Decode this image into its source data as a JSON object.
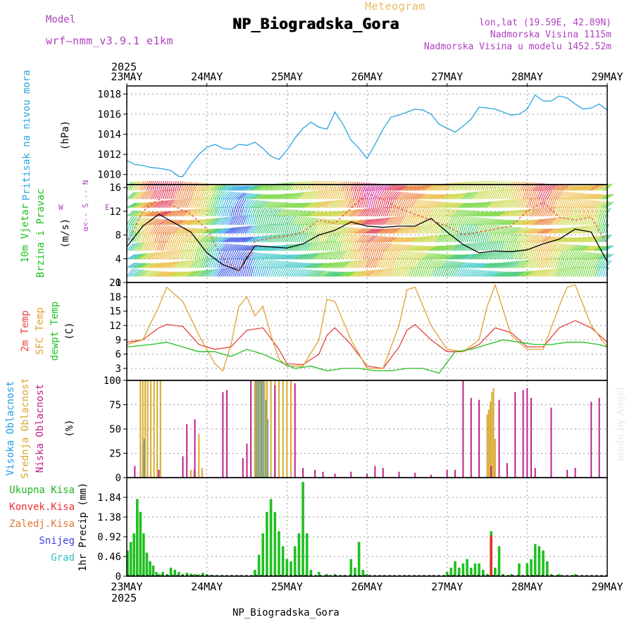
{
  "header": {
    "model_label": "Model",
    "model_version": "wrf–nmm_v3.9.1 e1km",
    "meteogram_label": "Meteogram",
    "station": "NP_Biogradska_Gora",
    "lonlat": "lon,lat (19.59E, 42.89N)",
    "altitude": "Nadmorska Visina 1115m",
    "model_altitude": "Nadmorska Visina u modelu 1452.52m",
    "footer_station": "NP_Biogradska_Gora",
    "made_by": "made by Angel"
  },
  "time_axis": {
    "year": "2025",
    "labels": [
      "23MAY",
      "24MAY",
      "25MAY",
      "26MAY",
      "27MAY",
      "28MAY",
      "29MAY"
    ]
  },
  "chart_data": [
    {
      "type": "line",
      "panel": "pressure",
      "ylabel_1": "Pritisak na nivou mora",
      "ylabel_2": "(hPa)",
      "ylim": [
        1009,
        1018.8
      ],
      "yticks": [
        1010,
        1012,
        1014,
        1016,
        1018
      ],
      "xlim_days": [
        0,
        6
      ],
      "series": [
        {
          "color": "#29a6e0",
          "x": [
            0,
            0.1,
            0.2,
            0.3,
            0.42,
            0.55,
            0.65,
            0.7,
            0.8,
            0.9,
            1.0,
            1.1,
            1.2,
            1.3,
            1.4,
            1.5,
            1.6,
            1.7,
            1.8,
            1.9,
            2.0,
            2.1,
            2.2,
            2.3,
            2.4,
            2.5,
            2.6,
            2.7,
            2.8,
            2.9,
            3.0,
            3.1,
            3.2,
            3.3,
            3.4,
            3.5,
            3.6,
            3.7,
            3.8,
            3.9,
            4.0,
            4.1,
            4.2,
            4.3,
            4.4,
            4.5,
            4.6,
            4.7,
            4.8,
            4.9,
            5.0,
            5.1,
            5.2,
            5.3,
            5.4,
            5.5,
            5.6,
            5.7,
            5.8,
            5.9,
            6.0
          ],
          "y": [
            1011.4,
            1011.0,
            1010.9,
            1010.7,
            1010.6,
            1010.4,
            1009.8,
            1009.8,
            1011.0,
            1012.0,
            1012.7,
            1013.0,
            1012.6,
            1012.5,
            1013.0,
            1012.9,
            1013.2,
            1012.6,
            1011.8,
            1011.5,
            1012.4,
            1013.6,
            1014.6,
            1015.2,
            1014.7,
            1014.5,
            1016.2,
            1015.0,
            1013.4,
            1012.6,
            1011.6,
            1013.0,
            1014.5,
            1015.7,
            1015.9,
            1016.2,
            1016.5,
            1016.4,
            1016.0,
            1015.0,
            1014.6,
            1014.2,
            1014.8,
            1015.5,
            1016.7,
            1016.6,
            1016.5,
            1016.2,
            1015.9,
            1016.0,
            1016.5,
            1017.9,
            1017.3,
            1017.3,
            1017.8,
            1017.6,
            1017.0,
            1016.5,
            1016.6,
            1017.0,
            1016.4
          ]
        }
      ]
    },
    {
      "type": "line",
      "panel": "wind",
      "ylabel_1": "10m Vjetar",
      "ylabel_2": "Brzina i Pravac",
      "ylabel_3": "(m/s)",
      "compass": {
        "n": "N",
        "s": "S",
        "w": "W",
        "e": "E",
        "angle": "α<"
      },
      "ylim": [
        0,
        16.5
      ],
      "yticks": [
        0,
        4,
        8,
        12,
        16
      ],
      "xlim_days": [
        0,
        6
      ],
      "series": [
        {
          "name": "wind speed",
          "color": "#000000",
          "x": [
            0,
            0.2,
            0.4,
            0.6,
            0.8,
            1.0,
            1.2,
            1.4,
            1.6,
            1.8,
            2.0,
            2.2,
            2.4,
            2.6,
            2.8,
            3.0,
            3.2,
            3.4,
            3.6,
            3.8,
            4.0,
            4.2,
            4.4,
            4.6,
            4.8,
            5.0,
            5.2,
            5.4,
            5.6,
            5.8,
            6.0
          ],
          "y": [
            6.0,
            9.5,
            11.5,
            10.0,
            8.5,
            5.0,
            3.0,
            2.0,
            6.2,
            6.0,
            5.8,
            6.5,
            8.0,
            8.8,
            10.2,
            9.5,
            9.3,
            9.5,
            9.5,
            10.8,
            8.5,
            6.4,
            5.0,
            5.3,
            5.2,
            5.5,
            6.5,
            7.3,
            9.0,
            8.5,
            3.5
          ]
        },
        {
          "name": "gust",
          "color": "#e84848",
          "x": [
            0,
            0.2,
            0.4,
            0.6,
            0.8,
            1.0,
            1.2,
            1.4,
            1.6,
            1.8,
            2.0,
            2.2,
            2.4,
            2.6,
            2.8,
            3.0,
            3.2,
            3.4,
            3.6,
            3.8,
            4.0,
            4.2,
            4.4,
            4.6,
            4.8,
            5.0,
            5.2,
            5.4,
            5.6,
            5.8,
            6.0
          ],
          "y": [
            6.5,
            12.0,
            14.0,
            12.8,
            11.5,
            9.0,
            4.0,
            2.0,
            7.0,
            7.5,
            7.8,
            8.5,
            10.5,
            10.0,
            12.5,
            15.0,
            14.0,
            12.5,
            11.5,
            10.5,
            9.5,
            8.0,
            8.5,
            9.0,
            9.5,
            12.0,
            13.5,
            11.0,
            10.5,
            11.0,
            6.5
          ]
        }
      ]
    },
    {
      "type": "line",
      "panel": "temperature",
      "ylabel_1": "2m Temp",
      "ylabel_2": "SFC Temp",
      "ylabel_3": "dewpt Temp",
      "ylabel_4": "(C)",
      "ylim": [
        0.5,
        21
      ],
      "yticks": [
        3,
        6,
        9,
        12,
        15,
        18,
        21
      ],
      "xlim_days": [
        0,
        6
      ],
      "series": [
        {
          "name": "2m Temp",
          "color": "#e84040",
          "x": [
            0,
            0.2,
            0.4,
            0.5,
            0.7,
            0.9,
            1.1,
            1.3,
            1.5,
            1.7,
            1.9,
            2.0,
            2.2,
            2.4,
            2.5,
            2.6,
            2.8,
            3.0,
            3.2,
            3.4,
            3.5,
            3.6,
            3.8,
            4.0,
            4.2,
            4.4,
            4.6,
            4.8,
            5.0,
            5.2,
            5.4,
            5.6,
            5.8,
            6.0
          ],
          "y": [
            8.5,
            9.0,
            11.5,
            12.2,
            11.8,
            8.0,
            7.0,
            7.5,
            11.0,
            11.5,
            7.0,
            4.0,
            3.8,
            6.0,
            10.0,
            11.5,
            8.0,
            3.5,
            3.0,
            7.5,
            11.0,
            12.2,
            9.0,
            6.5,
            6.5,
            8.0,
            11.5,
            10.5,
            7.5,
            7.5,
            11.5,
            13.0,
            11.5,
            8.5
          ]
        },
        {
          "name": "SFC Temp",
          "color": "#e0a030",
          "x": [
            0,
            0.2,
            0.4,
            0.5,
            0.7,
            0.9,
            1.1,
            1.2,
            1.3,
            1.4,
            1.5,
            1.6,
            1.7,
            1.8,
            1.9,
            2.0,
            2.2,
            2.4,
            2.5,
            2.6,
            2.8,
            3.0,
            3.2,
            3.4,
            3.5,
            3.6,
            3.8,
            4.0,
            4.2,
            4.4,
            4.5,
            4.6,
            4.8,
            5.0,
            5.2,
            5.4,
            5.5,
            5.6,
            5.8,
            6.0
          ],
          "y": [
            8.0,
            9.0,
            16.0,
            20.0,
            17.0,
            10.0,
            4.0,
            2.5,
            8.0,
            16.0,
            18.0,
            14.0,
            16.0,
            10.0,
            5.0,
            3.5,
            3.5,
            9.0,
            17.5,
            17.0,
            9.0,
            3.0,
            3.0,
            12.0,
            19.5,
            20.0,
            12.0,
            7.0,
            6.5,
            9.0,
            16.0,
            20.5,
            10.0,
            7.0,
            7.0,
            16.0,
            20.0,
            20.5,
            12.0,
            7.5
          ]
        },
        {
          "name": "dewpt Temp",
          "color": "#20c020",
          "x": [
            0,
            0.3,
            0.5,
            0.7,
            0.9,
            1.1,
            1.3,
            1.5,
            1.7,
            1.9,
            2.1,
            2.3,
            2.5,
            2.7,
            2.9,
            3.1,
            3.3,
            3.5,
            3.7,
            3.9,
            4.1,
            4.3,
            4.5,
            4.7,
            4.9,
            5.1,
            5.3,
            5.5,
            5.7,
            5.9,
            6.0
          ],
          "y": [
            7.5,
            8.0,
            8.5,
            7.5,
            6.5,
            6.5,
            5.5,
            7.0,
            6.0,
            4.5,
            3.0,
            3.5,
            2.5,
            3.0,
            3.0,
            2.5,
            2.5,
            3.0,
            3.0,
            2.0,
            6.5,
            7.0,
            8.0,
            9.0,
            8.5,
            8.0,
            8.0,
            8.5,
            8.5,
            8.0,
            7.5
          ]
        }
      ]
    },
    {
      "type": "bar",
      "panel": "cloud",
      "ylabel_1": "Visoka Oblacnost",
      "ylabel_2": "Srednja Oblacnost",
      "ylabel_3": "Niska Oblacnost",
      "ylabel_4": "(%)",
      "ylim": [
        0,
        100
      ],
      "yticks": [
        0,
        25,
        50,
        75,
        100
      ],
      "xlim_days": [
        0,
        6
      ],
      "series": [
        {
          "name": "Visoka Oblacnost",
          "color": "#20a0e0",
          "x": [
            0.2,
            0.22,
            1.6,
            1.62,
            1.64,
            1.66,
            1.68,
            1.7,
            1.72,
            1.74,
            1.76
          ],
          "values": [
            35,
            40,
            100,
            100,
            100,
            100,
            100,
            100,
            100,
            80,
            60
          ]
        },
        {
          "name": "Srednja Oblacnost",
          "color": "#d8a830",
          "x": [
            0.17,
            0.2,
            0.23,
            0.26,
            0.3,
            0.34,
            0.38,
            0.42,
            0.8,
            0.84,
            0.9,
            0.94,
            1.6,
            1.63,
            1.66,
            1.69,
            1.72,
            1.75,
            1.8,
            1.85,
            1.9,
            1.95,
            2.0,
            2.05,
            4.5,
            4.52,
            4.54,
            4.56,
            4.58,
            4.6
          ],
          "values": [
            100,
            100,
            100,
            100,
            100,
            100,
            100,
            100,
            8,
            8,
            45,
            10,
            100,
            100,
            100,
            100,
            100,
            100,
            100,
            100,
            100,
            100,
            100,
            100,
            65,
            70,
            78,
            88,
            92,
            40
          ]
        },
        {
          "name": "Niska Oblacnost",
          "color": "#c0208a",
          "x": [
            0.1,
            0.4,
            0.7,
            0.75,
            0.85,
            1.2,
            1.25,
            1.45,
            1.5,
            1.55,
            1.85,
            2.1,
            2.2,
            2.35,
            2.45,
            2.6,
            2.8,
            3.0,
            3.1,
            3.2,
            3.4,
            3.6,
            3.8,
            4.0,
            4.1,
            4.2,
            4.3,
            4.4,
            4.55,
            4.65,
            4.75,
            4.85,
            4.95,
            5.0,
            5.05,
            5.1,
            5.3,
            5.5,
            5.6,
            5.8,
            5.9
          ],
          "values": [
            12,
            8,
            22,
            55,
            60,
            88,
            90,
            20,
            35,
            100,
            95,
            97,
            10,
            8,
            6,
            4,
            6,
            4,
            12,
            10,
            6,
            5,
            3,
            8,
            8,
            100,
            82,
            80,
            12,
            80,
            15,
            88,
            90,
            92,
            82,
            10,
            72,
            8,
            10,
            78,
            82
          ]
        }
      ]
    },
    {
      "type": "bar",
      "panel": "precip",
      "legend": [
        "Ukupna Kisa",
        "Konvek.Kisa",
        "Zaledj.Kisa",
        "Snijeg",
        "Grad"
      ],
      "legend_colors": [
        "#20b020",
        "#e83030",
        "#e07830",
        "#4040e0",
        "#30c0c0"
      ],
      "ylabel": "1hr Precip (mm)",
      "ylim": [
        0,
        2.3
      ],
      "yticks": [
        0,
        0.46,
        0.92,
        1.38,
        1.84
      ],
      "ytick_labels": [
        "0",
        "0.46",
        "0.92",
        "1.38",
        "1.84"
      ],
      "xlim_days": [
        0,
        6
      ],
      "series": [
        {
          "name": "Ukupna Kisa",
          "color": "#20c020",
          "x": [
            0.01,
            0.05,
            0.09,
            0.13,
            0.17,
            0.21,
            0.25,
            0.29,
            0.33,
            0.37,
            0.41,
            0.45,
            0.5,
            0.55,
            0.6,
            0.65,
            0.7,
            0.75,
            0.8,
            0.85,
            0.9,
            0.95,
            1.0,
            1.05,
            1.1,
            1.2,
            1.3,
            1.4,
            1.55,
            1.6,
            1.65,
            1.7,
            1.75,
            1.8,
            1.85,
            1.9,
            1.95,
            2.0,
            2.05,
            2.1,
            2.15,
            2.2,
            2.25,
            2.3,
            2.4,
            2.5,
            2.6,
            2.7,
            2.8,
            2.85,
            2.9,
            2.95,
            3.0,
            3.1,
            3.2,
            3.3,
            3.4,
            3.5,
            3.6,
            3.7,
            3.8,
            3.9,
            4.0,
            4.05,
            4.1,
            4.15,
            4.2,
            4.25,
            4.3,
            4.35,
            4.4,
            4.45,
            4.5,
            4.55,
            4.6,
            4.65,
            4.7,
            4.8,
            4.9,
            5.0,
            5.05,
            5.1,
            5.15,
            5.2,
            5.25,
            5.3,
            5.4,
            5.5,
            5.6,
            5.8
          ],
          "values": [
            0.6,
            0.8,
            1.0,
            1.8,
            1.5,
            1.0,
            0.55,
            0.35,
            0.25,
            0.1,
            0.05,
            0.1,
            0.05,
            0.2,
            0.15,
            0.1,
            0.05,
            0.08,
            0.06,
            0.05,
            0.04,
            0.08,
            0.05,
            0.03,
            0.02,
            0.02,
            0.02,
            0.02,
            0.02,
            0.15,
            0.5,
            1.0,
            1.5,
            1.8,
            1.5,
            1.05,
            0.7,
            0.4,
            0.35,
            0.7,
            1.0,
            2.2,
            1.0,
            0.15,
            0.1,
            0.05,
            0.05,
            0.02,
            0.4,
            0.2,
            0.8,
            0.15,
            0.05,
            0.02,
            0.02,
            0.02,
            0.02,
            0.02,
            0.02,
            0.02,
            0.02,
            0.02,
            0.1,
            0.2,
            0.35,
            0.2,
            0.3,
            0.4,
            0.2,
            0.3,
            0.3,
            0.15,
            0.05,
            1.05,
            0.2,
            0.7,
            0.05,
            0.05,
            0.3,
            0.3,
            0.4,
            0.75,
            0.7,
            0.6,
            0.35,
            0.05,
            0.05,
            0.02,
            0.05,
            0.02
          ]
        },
        {
          "name": "Konvek.Kisa",
          "color": "#e83030",
          "x": [
            4.55
          ],
          "values": [
            0.95
          ]
        }
      ]
    }
  ]
}
